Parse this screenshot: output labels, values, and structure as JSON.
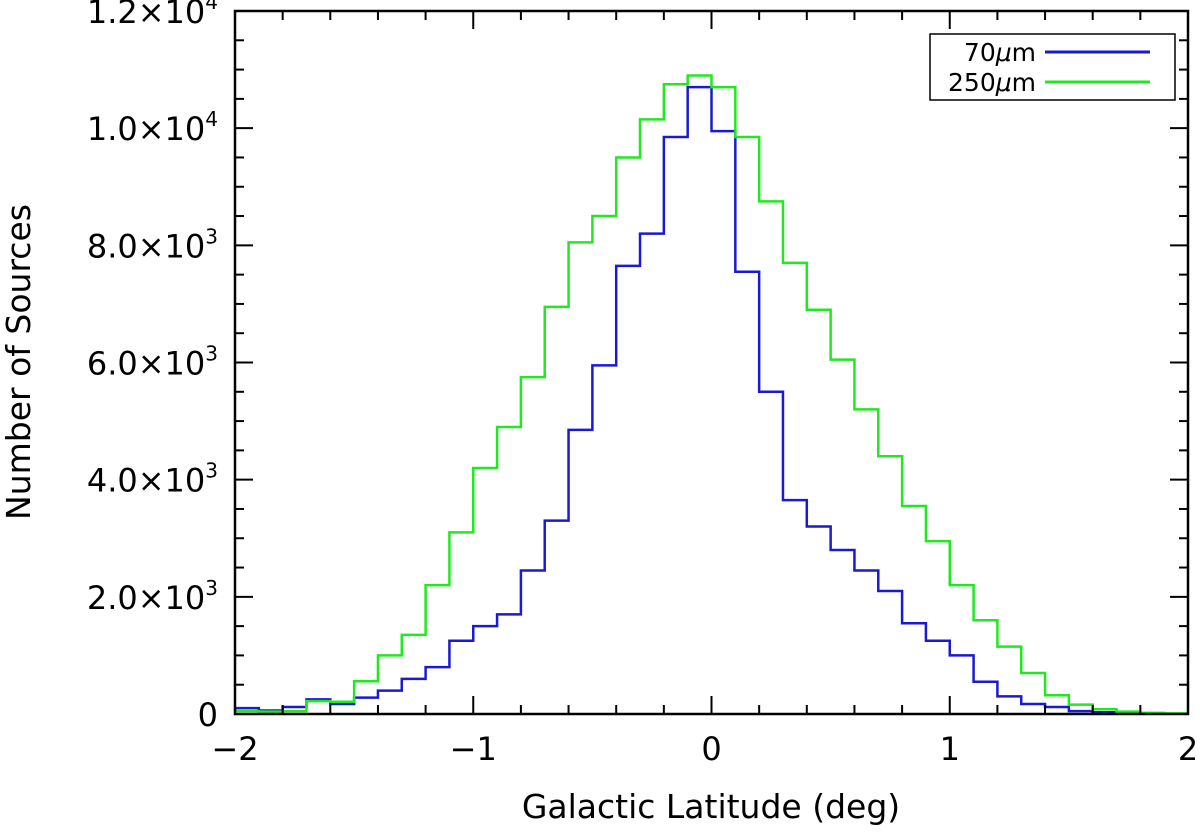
{
  "chart_data": {
    "type": "histogram-step",
    "title": "",
    "xlabel": "Galactic Latitude (deg)",
    "ylabel": "Number of Sources",
    "xlim": [
      -2,
      2
    ],
    "ylim": [
      0,
      12000
    ],
    "bin_width": 0.1,
    "bin_starts": [
      -2.0,
      -1.9,
      -1.8,
      -1.7,
      -1.6,
      -1.5,
      -1.4,
      -1.3,
      -1.2,
      -1.1,
      -1.0,
      -0.9,
      -0.8,
      -0.7,
      -0.6,
      -0.5,
      -0.4,
      -0.3,
      -0.2,
      -0.1,
      0.0,
      0.1,
      0.2,
      0.3,
      0.4,
      0.5,
      0.6,
      0.7,
      0.8,
      0.9,
      1.0,
      1.1,
      1.2,
      1.3,
      1.4,
      1.5,
      1.6,
      1.7,
      1.8,
      1.9
    ],
    "x_ticks": [
      {
        "value": -2,
        "label": "−2"
      },
      {
        "value": -1,
        "label": "−1"
      },
      {
        "value": 0,
        "label": "0"
      },
      {
        "value": 1,
        "label": "1"
      },
      {
        "value": 2,
        "label": "2"
      }
    ],
    "y_ticks": [
      {
        "value": 0,
        "mantissa": "0",
        "exp": ""
      },
      {
        "value": 2000,
        "mantissa": "2.0×10",
        "exp": "3"
      },
      {
        "value": 4000,
        "mantissa": "4.0×10",
        "exp": "3"
      },
      {
        "value": 6000,
        "mantissa": "6.0×10",
        "exp": "3"
      },
      {
        "value": 8000,
        "mantissa": "8.0×10",
        "exp": "3"
      },
      {
        "value": 10000,
        "mantissa": "1.0×10",
        "exp": "4"
      },
      {
        "value": 12000,
        "mantissa": "1.2×10",
        "exp": "4"
      }
    ],
    "series": [
      {
        "name": "70μm",
        "label_prefix": "70",
        "label_mu": "μ",
        "label_suffix": "m",
        "color": "#1a1ad2",
        "values": [
          100,
          60,
          120,
          250,
          170,
          280,
          400,
          600,
          800,
          1250,
          1500,
          1700,
          2450,
          3300,
          4850,
          5950,
          7650,
          8200,
          9850,
          10700,
          9950,
          7550,
          5500,
          3650,
          3200,
          2800,
          2450,
          2100,
          1550,
          1250,
          1000,
          550,
          300,
          170,
          120,
          50,
          30,
          20,
          10,
          5
        ]
      },
      {
        "name": "250μm",
        "label_prefix": "250",
        "label_mu": "μ",
        "label_suffix": "m",
        "color": "#22e822",
        "values": [
          50,
          40,
          50,
          220,
          210,
          560,
          1000,
          1350,
          2200,
          3100,
          4200,
          4900,
          5750,
          6950,
          8050,
          8500,
          9500,
          10150,
          10750,
          10900,
          10700,
          9850,
          8750,
          7700,
          6900,
          6050,
          5200,
          4400,
          3550,
          2950,
          2200,
          1600,
          1150,
          700,
          320,
          160,
          80,
          40,
          20,
          10
        ]
      }
    ],
    "legend_position": "top-right"
  }
}
